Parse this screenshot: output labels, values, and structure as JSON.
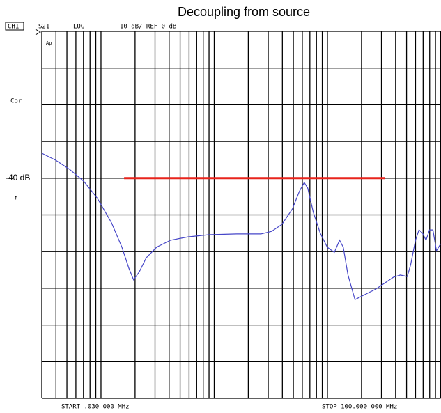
{
  "chart_data": {
    "type": "line",
    "title": "Decoupling from source",
    "header": {
      "channel": "CH1",
      "parameter": "S21",
      "format": "LOG",
      "scale": "10 dB/ REF 0 dB",
      "correction": "Cor",
      "marker": "Ap",
      "ref_arrow": "↑"
    },
    "ref_level": {
      "value": -40,
      "label": "-40 dB"
    },
    "start_label": "START  .030 000 MHz",
    "stop_label": "STOP  100.000 000 MHz",
    "xscale": "log",
    "xlim": [
      0.03,
      100
    ],
    "xticks": [
      0.03,
      0.04,
      0.05,
      0.06,
      0.07,
      0.08,
      0.09,
      0.1,
      0.2,
      0.3,
      0.4,
      0.5,
      0.6,
      0.7,
      0.8,
      0.9,
      1,
      2,
      3,
      4,
      5,
      6,
      7,
      8,
      9,
      10,
      20,
      30,
      40,
      50,
      60,
      70,
      80,
      90,
      100
    ],
    "ylim": [
      -100,
      0
    ],
    "yticks": [
      -100,
      -90,
      -80,
      -70,
      -60,
      -50,
      -40,
      -30,
      -20,
      -10,
      0
    ],
    "grid": true,
    "series": [
      {
        "color": "#4646c8",
        "x": [
          0.03,
          0.0398,
          0.0529,
          0.0702,
          0.0931,
          0.124,
          0.153,
          0.176,
          0.194,
          0.218,
          0.251,
          0.31,
          0.412,
          0.587,
          0.897,
          1.58,
          2.59,
          3.21,
          3.96,
          4.9,
          5.65,
          6.24,
          6.7,
          7.5,
          8.64,
          9.96,
          11.5,
          12.8,
          13.8,
          15.2,
          17.5,
          20.2,
          26.8,
          33.1,
          38.2,
          44.0,
          50.7,
          54.3,
          60.0,
          64.4,
          69.2,
          74.3,
          79.7,
          85.5,
          91.9,
          100
        ],
        "values": [
          -33.2,
          -35.1,
          -37.6,
          -40.8,
          -45.5,
          -52.2,
          -58.8,
          -64.5,
          -67.7,
          -65.5,
          -61.7,
          -58.8,
          -56.9,
          -56.0,
          -55.4,
          -55.2,
          -55.2,
          -54.5,
          -52.6,
          -48.4,
          -43.6,
          -41.2,
          -42.7,
          -49.3,
          -55.0,
          -58.8,
          -60.2,
          -56.9,
          -58.8,
          -66.4,
          -73.1,
          -72.1,
          -70.2,
          -68.3,
          -67.0,
          -66.4,
          -66.8,
          -63.6,
          -56.9,
          -54.1,
          -55.0,
          -56.9,
          -54.1,
          -54.1,
          -59.8,
          -57.9
        ]
      },
      {
        "color": "#e8241c",
        "x": [
          0.16,
          32
        ],
        "values": [
          -40,
          -40
        ]
      }
    ]
  }
}
